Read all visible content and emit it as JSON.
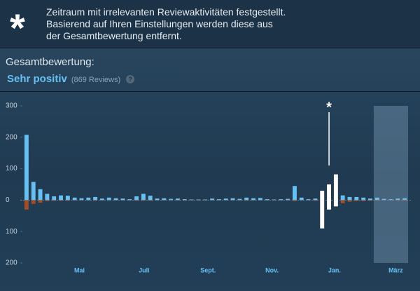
{
  "header": {
    "icon": "*",
    "lines": [
      "Zeitraum mit irrelevanten Reviewaktivitäten festgestellt.",
      "Basierend auf Ihren Einstellungen werden diese aus",
      "der Gesamtbewertung entfernt."
    ]
  },
  "summary": {
    "label": "Gesamtbewertung:",
    "rating": "Sehr positiv",
    "count": "(869 Reviews)",
    "help": "?"
  },
  "chart_data": {
    "type": "bar",
    "annotation": "*",
    "categories": [
      null,
      null,
      null,
      null,
      null,
      null,
      null,
      null,
      null,
      null,
      null,
      null,
      null,
      null,
      null,
      null,
      null,
      null,
      null,
      null,
      null,
      null,
      null,
      null,
      null,
      null,
      null,
      null,
      null,
      null,
      null,
      null,
      null,
      null,
      null,
      null,
      null,
      null,
      null,
      null,
      null,
      null,
      null,
      null,
      null,
      null,
      null,
      null,
      null,
      null,
      null,
      null,
      null,
      null,
      null,
      null
    ],
    "series": [
      {
        "name": "positive",
        "color": "#66c0f4",
        "values": [
          208,
          58,
          35,
          20,
          12,
          15,
          14,
          8,
          6,
          8,
          10,
          5,
          8,
          6,
          5,
          3,
          12,
          20,
          14,
          5,
          6,
          4,
          5,
          3,
          2,
          2,
          2,
          5,
          3,
          5,
          6,
          4,
          8,
          6,
          7,
          3,
          2,
          3,
          4,
          45,
          8,
          3,
          5,
          30,
          50,
          82,
          15,
          10,
          10,
          8,
          5,
          8,
          4,
          3,
          5,
          6
        ]
      },
      {
        "name": "negative",
        "color": "#a34c25",
        "values": [
          -30,
          -12,
          -8,
          -3,
          -2,
          -2,
          -2,
          -1,
          -1,
          -1,
          -2,
          -1,
          -1,
          -1,
          -1,
          -1,
          -2,
          -2,
          -2,
          -1,
          -1,
          -1,
          -1,
          -2,
          -1,
          -1,
          -1,
          -1,
          -1,
          -1,
          -1,
          -1,
          -2,
          -1,
          -1,
          -1,
          -1,
          -1,
          -1,
          -3,
          -1,
          -1,
          -2,
          -90,
          -30,
          -20,
          -10,
          -5,
          -3,
          -3,
          -2,
          -2,
          -1,
          -1,
          -2,
          -2
        ]
      }
    ],
    "highlight": [
      43,
      45
    ],
    "highlight_color": "#ffffff",
    "ylim": [
      -200,
      300
    ],
    "yticks": [
      300,
      200,
      100,
      0,
      {
        "value": -100,
        "label": "100"
      },
      {
        "value": -200,
        "label": "200"
      }
    ],
    "xlim": [
      -0.5,
      55.5
    ],
    "xticks": [
      {
        "value": 7.7,
        "label": "Mai"
      },
      {
        "value": 17.1,
        "label": "Juli"
      },
      {
        "value": 26.4,
        "label": "Sept."
      },
      {
        "value": 35.7,
        "label": "Nov."
      },
      {
        "value": 44.8,
        "label": "Jan."
      },
      {
        "value": 53.7,
        "label": "März"
      }
    ],
    "selection": [
      51,
      55
    ]
  }
}
